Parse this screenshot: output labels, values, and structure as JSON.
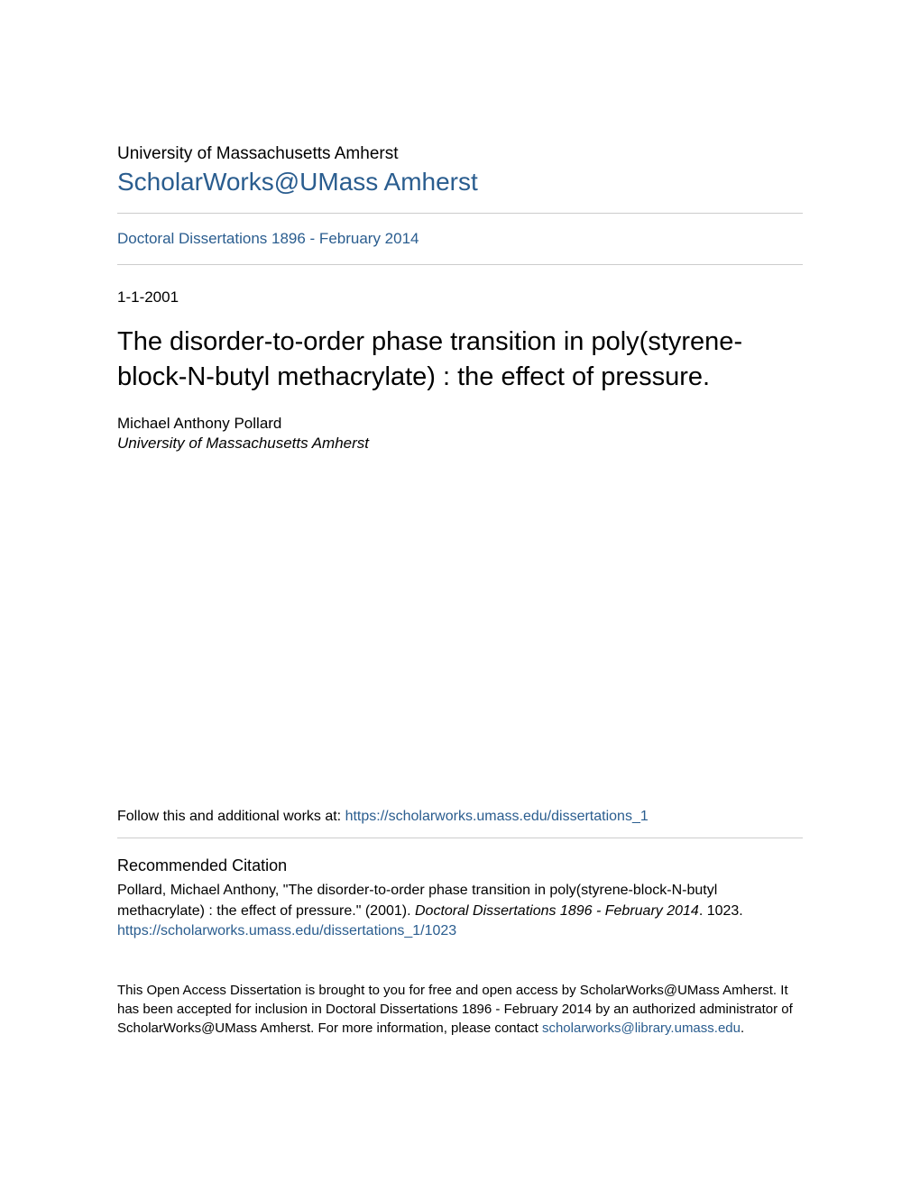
{
  "header": {
    "institution": "University of Massachusetts Amherst",
    "repository_name": "ScholarWorks@UMass Amherst",
    "collection_name": "Doctoral Dissertations 1896 - February 2014"
  },
  "document": {
    "date": "1-1-2001",
    "title": "The disorder-to-order phase transition in poly(styrene-block-N-butyl methacrylate) : the effect of pressure.",
    "author": "Michael Anthony Pollard",
    "affiliation": "University of Massachusetts Amherst"
  },
  "follow": {
    "prefix": "Follow this and additional works at: ",
    "url": "https://scholarworks.umass.edu/dissertations_1"
  },
  "citation": {
    "heading": "Recommended Citation",
    "text_part1": "Pollard, Michael Anthony, \"The disorder-to-order phase transition in poly(styrene-block-N-butyl methacrylate) : the effect of pressure.\" (2001). ",
    "series_italic": "Doctoral Dissertations 1896 - February 2014",
    "text_part2": ". 1023.",
    "url": "https://scholarworks.umass.edu/dissertations_1/1023"
  },
  "footer": {
    "text_part1": "This Open Access Dissertation is brought to you for free and open access by ScholarWorks@UMass Amherst. It has been accepted for inclusion in Doctoral Dissertations 1896 - February 2014 by an authorized administrator of ScholarWorks@UMass Amherst. For more information, please contact ",
    "contact_email": "scholarworks@library.umass.edu",
    "text_part2": "."
  },
  "colors": {
    "link_color": "#2a5d8f",
    "text_color": "#000000",
    "background": "#ffffff",
    "divider": "#cccccc"
  }
}
